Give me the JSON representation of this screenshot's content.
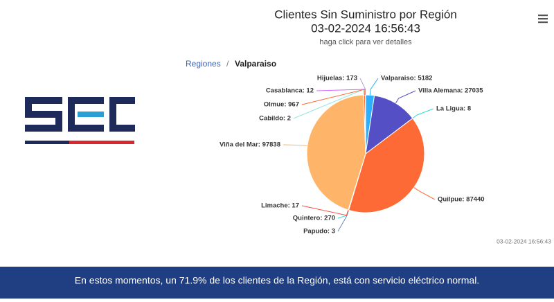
{
  "header": {
    "title": "Clientes Sin Suministro por Región",
    "timestamp": "03-02-2024 16:56:43",
    "subtitle": "haga click para ver detalles"
  },
  "breadcrumb": {
    "root": "Regiones",
    "separator": "/",
    "current": "Valparaiso"
  },
  "chart_data": {
    "type": "pie",
    "values": [
      5182,
      27035,
      8,
      87440,
      3,
      270,
      17,
      97838,
      2,
      967,
      12,
      173
    ],
    "value_labels": [
      "Valparaiso: 5182",
      "Villa Alemana: 27035",
      "La Ligua: 8",
      "Quilpue: 87440",
      "Papudo: 3",
      "Quintero: 270",
      "Limache: 17",
      "Viña del Mar: 97838",
      "Cabildo: 2",
      "Olmue: 967",
      "Casablanca: 12",
      "Hijuelas: 173"
    ],
    "colors": [
      "#2caffe",
      "#544fc5",
      "#2ee0ca",
      "#fe6a35",
      "#6b8abc",
      "#2ee0ca",
      "#fa4b42",
      "#feb56a",
      "#91e8e1",
      "#fe6a35",
      "#d568fb",
      "#b39ddb"
    ]
  },
  "footer_timestamp": "03-02-2024 16:56:43",
  "banner": {
    "text": "En estos momentos, un 71.9% de los clientes de la Región, está con servicio eléctrico normal."
  }
}
